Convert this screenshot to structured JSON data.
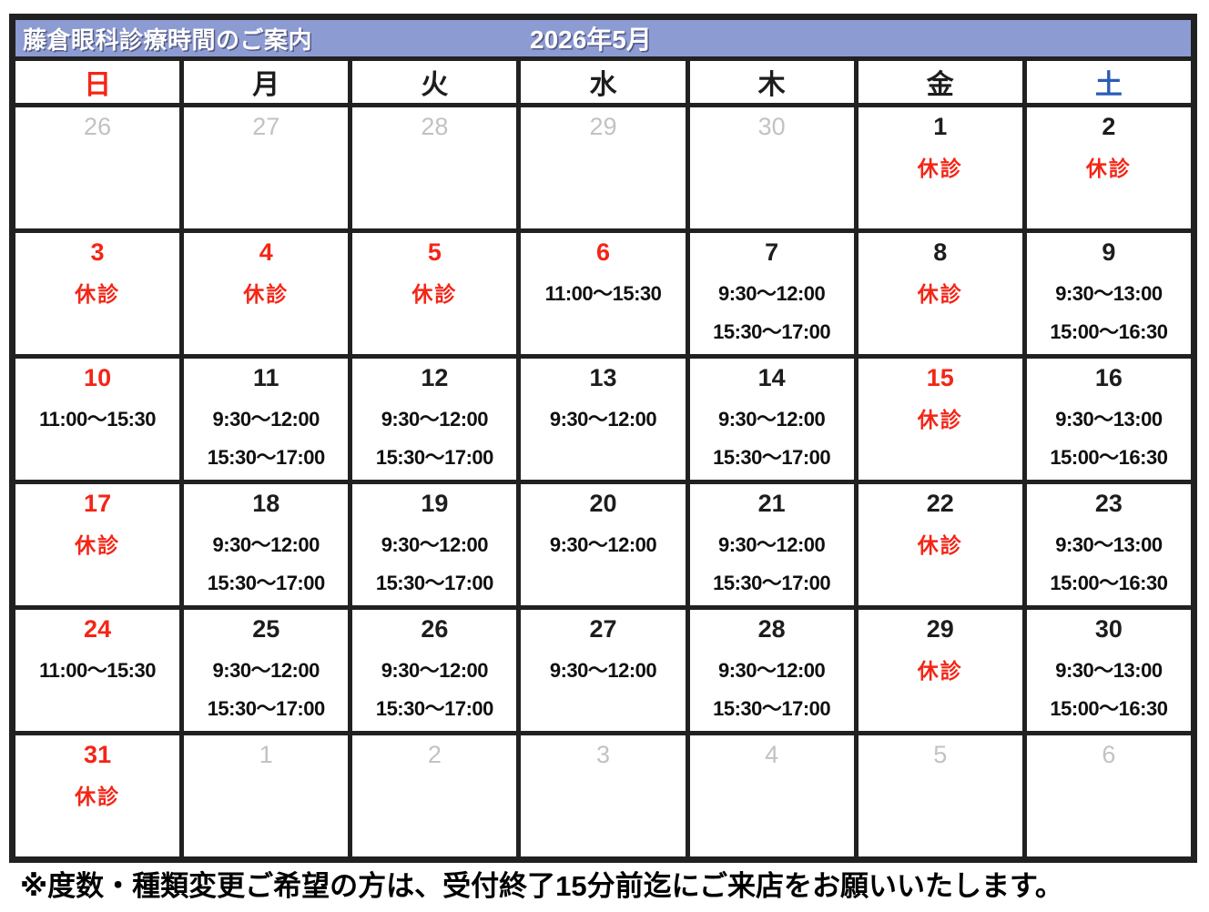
{
  "header": {
    "title": "藤倉眼科診療時間のご案内",
    "month_label": "2026年5月",
    "bg_color": "#8d9bd3"
  },
  "colors": {
    "border": "#212121",
    "closed_red": "#f42516",
    "saturday_blue": "#2b5cb4",
    "dim_gray": "#c2c2c2"
  },
  "weekdays": [
    {
      "label": "日",
      "variant": "sunday"
    },
    {
      "label": "月",
      "variant": "weekday"
    },
    {
      "label": "火",
      "variant": "weekday"
    },
    {
      "label": "水",
      "variant": "weekday"
    },
    {
      "label": "木",
      "variant": "weekday"
    },
    {
      "label": "金",
      "variant": "weekday"
    },
    {
      "label": "土",
      "variant": "saturday"
    }
  ],
  "weeks": [
    [
      {
        "day": "26",
        "variant": "dim",
        "lines": []
      },
      {
        "day": "27",
        "variant": "dim",
        "lines": []
      },
      {
        "day": "28",
        "variant": "dim",
        "lines": []
      },
      {
        "day": "29",
        "variant": "dim",
        "lines": []
      },
      {
        "day": "30",
        "variant": "dim",
        "lines": []
      },
      {
        "day": "1",
        "variant": "normal",
        "lines": [
          {
            "text": "休診",
            "variant": "closed"
          }
        ]
      },
      {
        "day": "2",
        "variant": "normal",
        "lines": [
          {
            "text": "休診",
            "variant": "closed"
          }
        ]
      }
    ],
    [
      {
        "day": "3",
        "variant": "red",
        "lines": [
          {
            "text": "休診",
            "variant": "closed"
          }
        ]
      },
      {
        "day": "4",
        "variant": "red",
        "lines": [
          {
            "text": "休診",
            "variant": "closed"
          }
        ]
      },
      {
        "day": "5",
        "variant": "red",
        "lines": [
          {
            "text": "休診",
            "variant": "closed"
          }
        ]
      },
      {
        "day": "6",
        "variant": "red",
        "lines": [
          {
            "text": "11:00〜15:30",
            "variant": "time"
          }
        ]
      },
      {
        "day": "7",
        "variant": "normal",
        "lines": [
          {
            "text": "9:30〜12:00",
            "variant": "time"
          },
          {
            "text": "15:30〜17:00",
            "variant": "time"
          }
        ]
      },
      {
        "day": "8",
        "variant": "normal",
        "lines": [
          {
            "text": "休診",
            "variant": "closed"
          }
        ]
      },
      {
        "day": "9",
        "variant": "normal",
        "lines": [
          {
            "text": "9:30〜13:00",
            "variant": "time"
          },
          {
            "text": "15:00〜16:30",
            "variant": "time"
          }
        ]
      }
    ],
    [
      {
        "day": "10",
        "variant": "red",
        "lines": [
          {
            "text": "11:00〜15:30",
            "variant": "time"
          }
        ]
      },
      {
        "day": "11",
        "variant": "normal",
        "lines": [
          {
            "text": "9:30〜12:00",
            "variant": "time"
          },
          {
            "text": "15:30〜17:00",
            "variant": "time"
          }
        ]
      },
      {
        "day": "12",
        "variant": "normal",
        "lines": [
          {
            "text": "9:30〜12:00",
            "variant": "time"
          },
          {
            "text": "15:30〜17:00",
            "variant": "time"
          }
        ]
      },
      {
        "day": "13",
        "variant": "normal",
        "lines": [
          {
            "text": "9:30〜12:00",
            "variant": "time"
          }
        ]
      },
      {
        "day": "14",
        "variant": "normal",
        "lines": [
          {
            "text": "9:30〜12:00",
            "variant": "time"
          },
          {
            "text": "15:30〜17:00",
            "variant": "time"
          }
        ]
      },
      {
        "day": "15",
        "variant": "red",
        "lines": [
          {
            "text": "休診",
            "variant": "closed"
          }
        ]
      },
      {
        "day": "16",
        "variant": "normal",
        "lines": [
          {
            "text": "9:30〜13:00",
            "variant": "time"
          },
          {
            "text": "15:00〜16:30",
            "variant": "time"
          }
        ]
      }
    ],
    [
      {
        "day": "17",
        "variant": "red",
        "lines": [
          {
            "text": "休診",
            "variant": "closed"
          }
        ]
      },
      {
        "day": "18",
        "variant": "normal",
        "lines": [
          {
            "text": "9:30〜12:00",
            "variant": "time"
          },
          {
            "text": "15:30〜17:00",
            "variant": "time"
          }
        ]
      },
      {
        "day": "19",
        "variant": "normal",
        "lines": [
          {
            "text": "9:30〜12:00",
            "variant": "time"
          },
          {
            "text": "15:30〜17:00",
            "variant": "time"
          }
        ]
      },
      {
        "day": "20",
        "variant": "normal",
        "lines": [
          {
            "text": "9:30〜12:00",
            "variant": "time"
          }
        ]
      },
      {
        "day": "21",
        "variant": "normal",
        "lines": [
          {
            "text": "9:30〜12:00",
            "variant": "time"
          },
          {
            "text": "15:30〜17:00",
            "variant": "time"
          }
        ]
      },
      {
        "day": "22",
        "variant": "normal",
        "lines": [
          {
            "text": "休診",
            "variant": "closed"
          }
        ]
      },
      {
        "day": "23",
        "variant": "normal",
        "lines": [
          {
            "text": "9:30〜13:00",
            "variant": "time"
          },
          {
            "text": "15:00〜16:30",
            "variant": "time"
          }
        ]
      }
    ],
    [
      {
        "day": "24",
        "variant": "red",
        "lines": [
          {
            "text": "11:00〜15:30",
            "variant": "time"
          }
        ]
      },
      {
        "day": "25",
        "variant": "normal",
        "lines": [
          {
            "text": "9:30〜12:00",
            "variant": "time"
          },
          {
            "text": "15:30〜17:00",
            "variant": "time"
          }
        ]
      },
      {
        "day": "26",
        "variant": "normal",
        "lines": [
          {
            "text": "9:30〜12:00",
            "variant": "time"
          },
          {
            "text": "15:30〜17:00",
            "variant": "time"
          }
        ]
      },
      {
        "day": "27",
        "variant": "normal",
        "lines": [
          {
            "text": "9:30〜12:00",
            "variant": "time"
          }
        ]
      },
      {
        "day": "28",
        "variant": "normal",
        "lines": [
          {
            "text": "9:30〜12:00",
            "variant": "time"
          },
          {
            "text": "15:30〜17:00",
            "variant": "time"
          }
        ]
      },
      {
        "day": "29",
        "variant": "normal",
        "lines": [
          {
            "text": "休診",
            "variant": "closed"
          }
        ]
      },
      {
        "day": "30",
        "variant": "normal",
        "lines": [
          {
            "text": "9:30〜13:00",
            "variant": "time"
          },
          {
            "text": "15:00〜16:30",
            "variant": "time"
          }
        ]
      }
    ],
    [
      {
        "day": "31",
        "variant": "red",
        "lines": [
          {
            "text": "休診",
            "variant": "closed"
          }
        ]
      },
      {
        "day": "1",
        "variant": "dim",
        "lines": []
      },
      {
        "day": "2",
        "variant": "dim",
        "lines": []
      },
      {
        "day": "3",
        "variant": "dim",
        "lines": []
      },
      {
        "day": "4",
        "variant": "dim",
        "lines": []
      },
      {
        "day": "5",
        "variant": "dim",
        "lines": []
      },
      {
        "day": "6",
        "variant": "dim",
        "lines": []
      }
    ]
  ],
  "footer": {
    "note": "※度数・種類変更ご希望の方は、受付終了15分前迄にご来店をお願いいたします。"
  }
}
